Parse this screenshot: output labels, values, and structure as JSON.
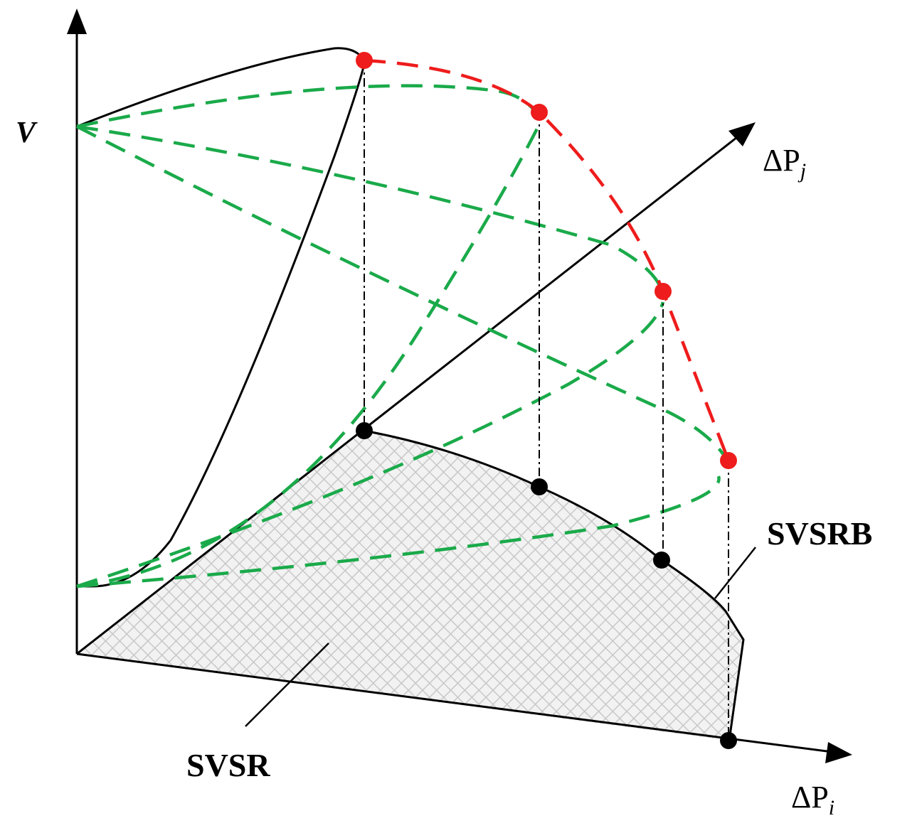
{
  "labels": {
    "v_axis": "V",
    "pj_axis": {
      "main": "ΔP",
      "sub": "j"
    },
    "pi_axis": {
      "main": "ΔP",
      "sub": "i"
    },
    "boundary": "SVSRB",
    "region": "SVSR"
  }
}
